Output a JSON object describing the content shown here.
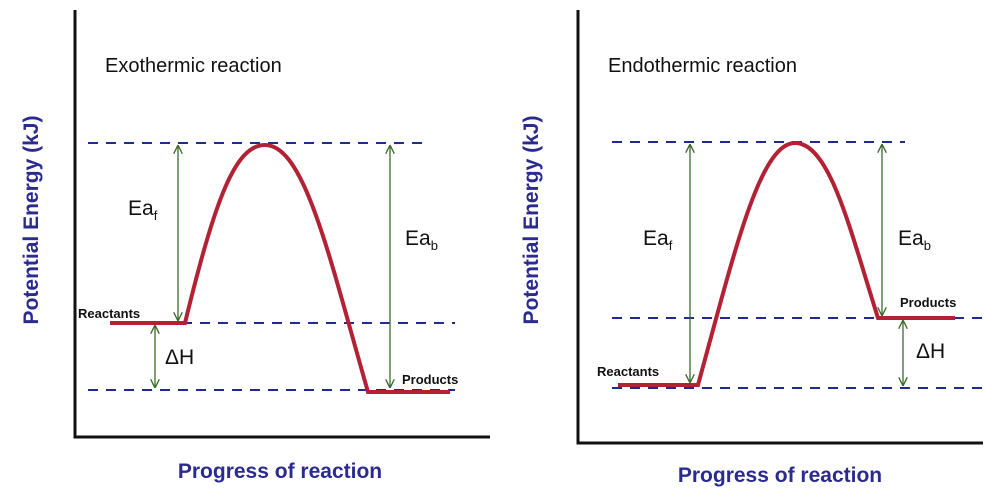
{
  "panels": [
    {
      "title": "Exothermic reaction",
      "y_axis_label": "Potential Energy (kJ)",
      "x_axis_label": "Progress of reaction",
      "ea_forward": {
        "main": "Ea",
        "sub": "f"
      },
      "ea_backward": {
        "main": "Ea",
        "sub": "b"
      },
      "delta_h": "ΔH",
      "reactants": "Reactants",
      "products": "Products"
    },
    {
      "title": "Endothermic reaction",
      "y_axis_label": "Potential Energy (kJ)",
      "x_axis_label": "Progress of reaction",
      "ea_forward": {
        "main": "Ea",
        "sub": "f"
      },
      "ea_backward": {
        "main": "Ea",
        "sub": "b"
      },
      "delta_h": "ΔH",
      "reactants": "Reactants",
      "products": "Products"
    }
  ]
}
